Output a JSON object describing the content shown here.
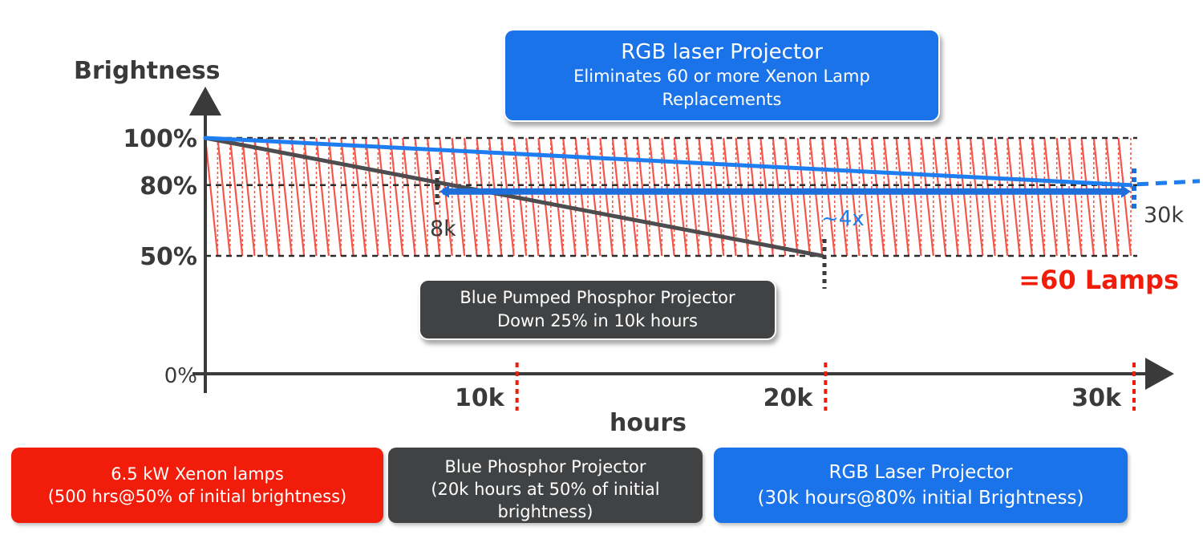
{
  "chart_data": {
    "type": "line",
    "ylabel": "Brightness",
    "xlabel": "hours",
    "xlim": [
      0,
      30000
    ],
    "ylim": [
      0,
      100
    ],
    "y_ticks": [
      {
        "value": 0,
        "label": "0%"
      },
      {
        "value": 50,
        "label": "50%"
      },
      {
        "value": 80,
        "label": "80%"
      },
      {
        "value": 100,
        "label": "100%"
      }
    ],
    "x_ticks": [
      {
        "value": 10000,
        "label": "10k"
      },
      {
        "value": 20000,
        "label": "20k"
      },
      {
        "value": 30000,
        "label": "30k"
      }
    ],
    "series": [
      {
        "name": "6.5 kW Xenon lamps",
        "color": "#f5564a",
        "style": "sawtooth",
        "period_hours": 500,
        "low": 50,
        "high": 100,
        "x_range": [
          0,
          30000
        ]
      },
      {
        "name": "Blue Phosphor Projector",
        "color": "#4d4d4f",
        "x": [
          0,
          20000
        ],
        "y": [
          100,
          50
        ]
      },
      {
        "name": "RGB Laser Projector",
        "color": "#1e7ef0",
        "x": [
          0,
          30000
        ],
        "y": [
          100,
          80
        ]
      }
    ],
    "annotations": {
      "eight_k": "8k",
      "four_x": "~4x",
      "thirty_k": "30k",
      "sixty_lamps": "=60 Lamps"
    },
    "grid": false,
    "legend": "bottom"
  },
  "callouts": {
    "rgb": {
      "line1": "RGB laser Projector",
      "line2": "Eliminates 60 or more Xenon Lamp",
      "line3": "Replacements"
    },
    "blue": {
      "line1": "Blue Pumped Phosphor Projector",
      "line2": "Down 25% in 10k hours"
    }
  },
  "legend": {
    "xenon": {
      "line1": "6.5 kW Xenon lamps",
      "line2": "(500 hrs@50% of initial brightness)"
    },
    "blue": {
      "line1": "Blue Phosphor Projector",
      "line2": "(20k hours at 50% of initial",
      "line3": "brightness)"
    },
    "rgb": {
      "line1": "RGB Laser Projector",
      "line2": "(30k hours@80% initial Brightness)"
    }
  },
  "colors": {
    "xenon": "#f21c0a",
    "xenon_line": "#f5564a",
    "blue_phosphor": "#404244",
    "rgb_laser": "#1a73e8",
    "axis": "#3a3a3a"
  }
}
